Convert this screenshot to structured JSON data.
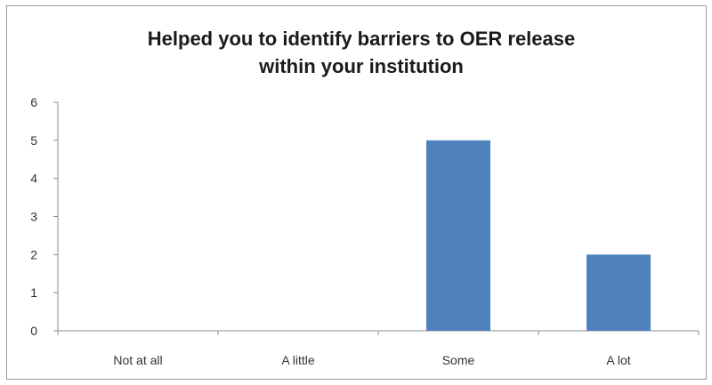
{
  "chart_data": {
    "type": "bar",
    "title_lines": [
      "Helped you to identify barriers to OER release",
      "within your institution"
    ],
    "categories": [
      "Not at all",
      "A little",
      "Some",
      "A lot"
    ],
    "values": [
      0,
      0,
      5,
      2
    ],
    "ylim": [
      0,
      6
    ],
    "yticks": [
      "0",
      "1",
      "2",
      "3",
      "4",
      "5",
      "6"
    ],
    "xlabel": "",
    "ylabel": "",
    "grid": false,
    "legend": "none",
    "bar_color": "#4f81bd",
    "axis_color": "#8c8c8c"
  }
}
